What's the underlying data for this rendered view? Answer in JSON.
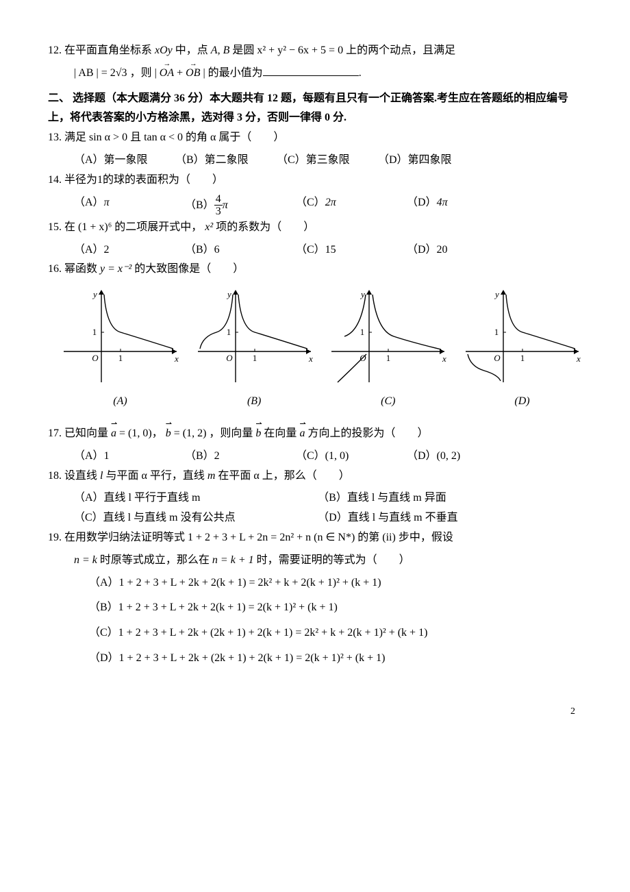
{
  "q12": {
    "num": "12.",
    "text_a": "在平面直角坐标系 ",
    "xoy": "xOy",
    "text_b": " 中，点 ",
    "A": "A",
    "comma": ", ",
    "B": "B",
    "text_c": " 是圆 ",
    "circle": "x² + y² − 6x + 5 = 0",
    "text_d": " 上的两个动点，且满足",
    "ab_eq": "| AB | = 2√3",
    "text_e": " ，则 ",
    "vecsum_l": "| ",
    "OA": "OA",
    "plus": " + ",
    "OB": "OB",
    "vecsum_r": " |",
    "text_f": " 的最小值为",
    "period": "."
  },
  "section2": {
    "num": "二、",
    "title": "选择题（本大题满分 36 分）本大题共有 12 题，每题有且只有一个正确答案.考生应在答题纸的相应编号上，将代表答案的小方格涂黑，选对得 3 分，否则一律得 0 分."
  },
  "q13": {
    "num": "13.",
    "text": "满足 sin α > 0 且 tan α < 0 的角 α 属于（　　）",
    "A": "（A）第一象限",
    "B": "（B）第二象限",
    "C": "（C）第三象限",
    "D": "（D）第四象限"
  },
  "q14": {
    "num": "14.",
    "text": "半径为1的球的表面积为（　　）",
    "A_pre": "（A）",
    "A_val": "π",
    "B_pre": "（B）",
    "B_num": "4",
    "B_den": "3",
    "B_post": "π",
    "C_pre": "（C）",
    "C_val": "2π",
    "D_pre": "（D）",
    "D_val": "4π"
  },
  "q15": {
    "num": "15.",
    "text_a": "在 ",
    "expr": "(1 + x)⁶",
    "text_b": " 的二项展开式中，",
    "x2": "x²",
    "text_c": " 项的系数为（　　）",
    "A": "（A）2",
    "B": "（B）6",
    "C": "（C）15",
    "D": "（D）20"
  },
  "q16": {
    "num": "16.",
    "text_a": "幂函数 ",
    "fn": "y = x⁻²",
    "text_b": " 的大致图像是（　　）",
    "graphs": [
      {
        "label": "(A)",
        "type": "q1-decay"
      },
      {
        "label": "(B)",
        "type": "both-up"
      },
      {
        "label": "(C)",
        "type": "q1-up-q3-down"
      },
      {
        "label": "(D)",
        "type": "q1-decay-q3-decay"
      }
    ],
    "axis_labels": {
      "x": "x",
      "y": "y",
      "one": "1",
      "origin": "O"
    },
    "style": {
      "width": 175,
      "height": 150,
      "stroke": "#000000",
      "stroke_width": 1.4,
      "font_size": 13,
      "font_family": "Times New Roman, serif",
      "tick_len": 4
    }
  },
  "q17": {
    "num": "17.",
    "text_a": "已知向量 ",
    "a": "a",
    "a_val": " = (1, 0)",
    "sep": "，",
    "b": "b",
    "b_val": " = (1, 2)",
    "text_b": "，则向量 ",
    "text_c": " 在向量 ",
    "text_d": " 方向上的投影为（　　）",
    "A": "（A）1",
    "B": "（B）2",
    "C": "（C）(1, 0)",
    "D": "（D）(0, 2)"
  },
  "q18": {
    "num": "18.",
    "text_a": "设直线 ",
    "l": "l",
    "text_b": " 与平面 α 平行，直线 ",
    "m": "m",
    "text_c": " 在平面 α 上，那么（　　）",
    "A": "（A）直线 l 平行于直线 m",
    "B": "（B）直线 l 与直线 m 异面",
    "C": "（C）直线 l 与直线 m 没有公共点",
    "D": "（D）直线 l 与直线 m 不垂直"
  },
  "q19": {
    "num": "19.",
    "text_a": "在用数学归纳法证明等式 ",
    "eq1": "1 + 2 + 3 + L  + 2n = 2n² + n   (n ∈ N*)",
    "text_b": " 的第 (ii) 步中，假设",
    "line2_a": "n = k",
    "line2_b": " 时原等式成立，那么在 ",
    "line2_c": "n = k + 1",
    "line2_d": " 时，需要证明的等式为（　　）",
    "A": "（A）1 + 2 + 3 + L  + 2k + 2(k + 1) = 2k² + k + 2(k + 1)² + (k + 1)",
    "B": "（B）1 + 2 + 3 + L  + 2k + 2(k + 1) = 2(k + 1)² + (k + 1)",
    "C": "（C）1 + 2 + 3 + L  + 2k + (2k + 1) + 2(k + 1) = 2k² + k + 2(k + 1)² + (k + 1)",
    "D": "（D）1 + 2 + 3 + L  + 2k + (2k + 1) + 2(k + 1) = 2(k + 1)² + (k + 1)"
  },
  "page_number": "2"
}
